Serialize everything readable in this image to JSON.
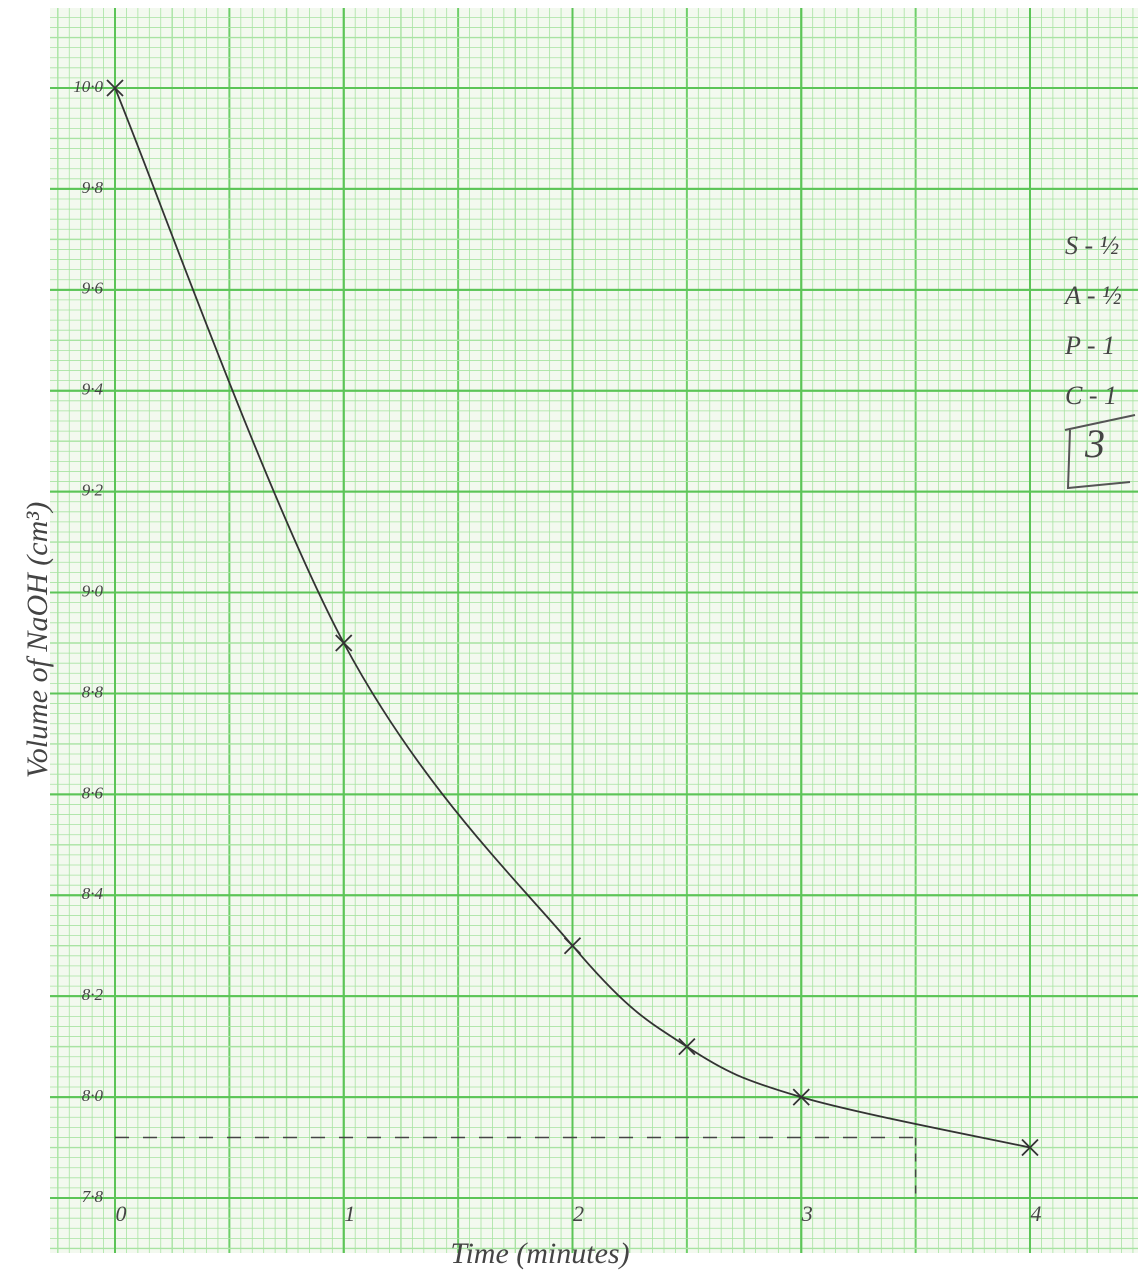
{
  "chart_data": {
    "type": "line",
    "y_label": "Volume of NaOH (cm³)",
    "x_label": "Time (minutes)",
    "x": [
      0,
      1,
      2,
      2.5,
      3,
      4
    ],
    "series": [
      {
        "color": "#333333",
        "values": [
          10.0,
          8.9,
          8.3,
          8.1,
          8.0,
          7.9
        ]
      }
    ],
    "xlim": [
      0,
      4
    ],
    "ylim": [
      7.8,
      10.0
    ],
    "xticks": [
      0,
      1,
      2,
      3,
      4
    ],
    "yticks": [
      {
        "value": 7.8,
        "label": "7·8"
      },
      {
        "value": 8.0,
        "label": "8·0"
      },
      {
        "value": 8.2,
        "label": "8·2"
      },
      {
        "value": 8.4,
        "label": "8·4"
      },
      {
        "value": 8.6,
        "label": "8·6"
      },
      {
        "value": 8.8,
        "label": "8·8"
      },
      {
        "value": 9.0,
        "label": "9·0"
      },
      {
        "value": 9.2,
        "label": "9·2"
      },
      {
        "value": 9.4,
        "label": "9·4"
      },
      {
        "value": 9.6,
        "label": "9·6"
      },
      {
        "value": 9.8,
        "label": "9·8"
      },
      {
        "value": 10.0,
        "label": "10·0"
      }
    ],
    "reading": {
      "x": 3.5,
      "y": 7.92
    },
    "grid": true,
    "annotations": [
      "S - ½",
      "A - ½",
      "P - 1",
      "C - 1",
      "3"
    ]
  }
}
